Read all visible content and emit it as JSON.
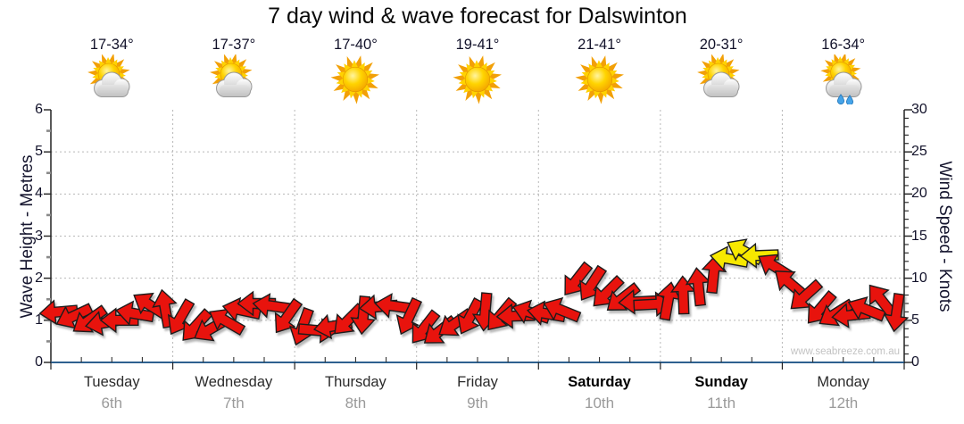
{
  "title": "7 day wind & wave forecast for Dalswinton",
  "watermark": "www.seabreeze.com.au",
  "axes": {
    "left_label": "Wave Height - Metres",
    "right_label": "Wind Speed - Knots",
    "left_ticks": [
      0,
      1,
      2,
      3,
      4,
      5,
      6
    ],
    "right_ticks": [
      0,
      5,
      10,
      15,
      20,
      25,
      30
    ]
  },
  "days": [
    {
      "name": "Tuesday",
      "date": "6th",
      "temp": "17-34°",
      "icon": "sun-cloud-icon",
      "weekend": false
    },
    {
      "name": "Wednesday",
      "date": "7th",
      "temp": "17-37°",
      "icon": "sun-cloud-icon",
      "weekend": false
    },
    {
      "name": "Thursday",
      "date": "8th",
      "temp": "17-40°",
      "icon": "sun-icon",
      "weekend": false
    },
    {
      "name": "Friday",
      "date": "9th",
      "temp": "19-41°",
      "icon": "sun-icon",
      "weekend": false
    },
    {
      "name": "Saturday",
      "date": "10th",
      "temp": "21-41°",
      "icon": "sun-icon",
      "weekend": true
    },
    {
      "name": "Sunday",
      "date": "11th",
      "temp": "20-31°",
      "icon": "sun-cloud-icon",
      "weekend": true
    },
    {
      "name": "Monday",
      "date": "12th",
      "temp": "16-34°",
      "icon": "sun-cloud-rain-icon",
      "weekend": false
    }
  ],
  "chart_data": {
    "type": "scatter",
    "subtype": "wind-direction-arrows",
    "title": "7 day wind & wave forecast for Dalswinton",
    "categories": [
      "Tuesday 6th",
      "Wednesday 7th",
      "Thursday 8th",
      "Friday 9th",
      "Saturday 10th",
      "Sunday 11th",
      "Monday 12th"
    ],
    "points_per_day": 8,
    "ylabel_left": "Wave Height - Metres",
    "ylabel_right": "Wind Speed - Knots",
    "ylim_left": [
      0,
      6
    ],
    "ylim_right": [
      0,
      30
    ],
    "grid": "dotted, horizontal every 5 knots, vertical at day boundaries",
    "legend": "none",
    "speeds_knots": [
      6.0,
      5.5,
      5.0,
      4.7,
      5.0,
      5.8,
      6.8,
      6.4,
      5.3,
      4.3,
      4.0,
      4.9,
      6.2,
      7.0,
      6.7,
      5.4,
      4.2,
      3.8,
      4.3,
      5.0,
      5.6,
      6.6,
      6.7,
      5.4,
      4.1,
      3.7,
      4.6,
      5.4,
      6.0,
      5.6,
      5.5,
      5.9,
      5.8,
      6.2,
      9.8,
      9.3,
      8.3,
      7.6,
      7.2,
      6.9,
      7.3,
      8.0,
      9.0,
      10.5,
      12.3,
      13.2,
      12.7,
      11.4,
      9.4,
      7.9,
      6.4,
      5.8,
      5.6,
      6.3,
      7.4,
      5.9
    ],
    "directions_deg_pointing": [
      185,
      205,
      215,
      190,
      180,
      170,
      148,
      100,
      240,
      228,
      210,
      150,
      168,
      180,
      172,
      235,
      250,
      355,
      190,
      225,
      265,
      185,
      172,
      245,
      232,
      218,
      215,
      242,
      265,
      230,
      182,
      162,
      170,
      158,
      232,
      237,
      225,
      218,
      183,
      3,
      80,
      92,
      96,
      84,
      170,
      152,
      182,
      148,
      140,
      222,
      230,
      212,
      186,
      158,
      128,
      262
    ],
    "strong_wind_threshold_knots": 12,
    "colors": {
      "arrow_light": "#e8130d",
      "arrow_strong": "#f7e800",
      "arrow_outline": "#1c1c1c",
      "axis_line": "#2e618f",
      "grid": "#b8b8b8",
      "text_dark": "#12122a",
      "date_grey": "#9a9a9a",
      "watermark_grey": "#c3c3c3"
    }
  }
}
